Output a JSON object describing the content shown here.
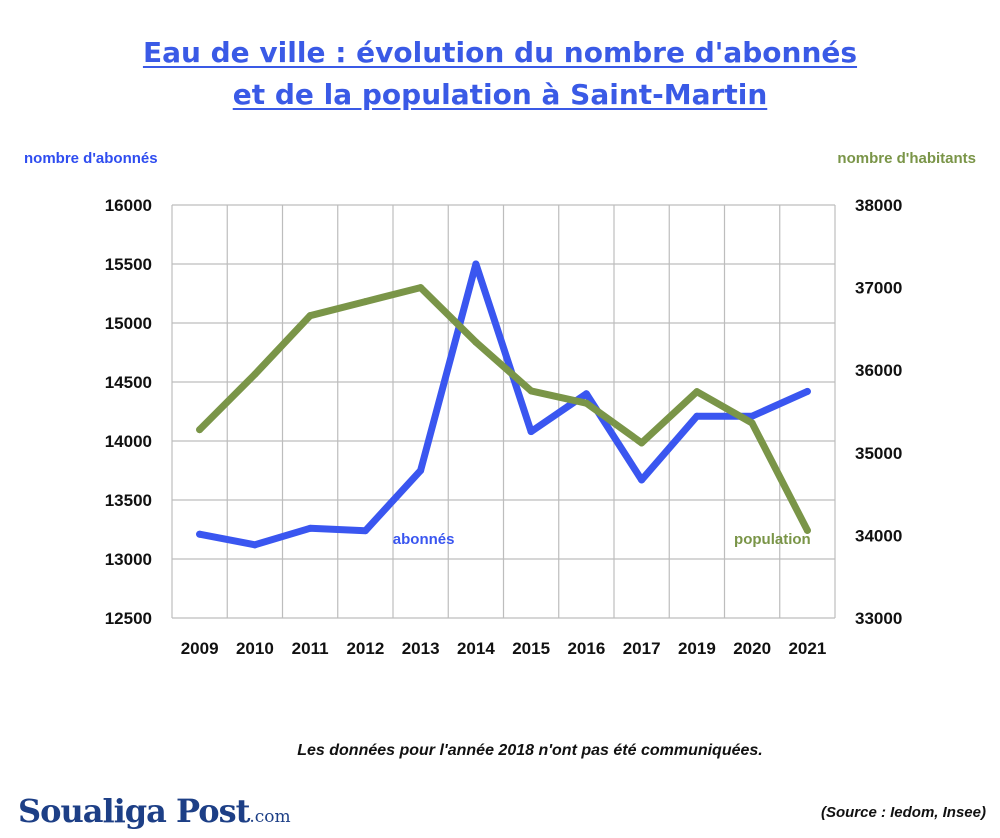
{
  "header": {
    "title_line1": "Eau de ville : évolution du nombre d'abonnés",
    "title_line2": "et de la population à Saint-Martin"
  },
  "axes": {
    "left_title": "nombre d'abonnés",
    "right_title": "nombre d'habitants"
  },
  "footer": {
    "note": "Les données pour l'année 2018 n'ont pas été communiquées.",
    "source": "(Source : Iedom, Insee)",
    "logo_main": "Soualiga Post",
    "logo_suffix": ".com"
  },
  "colors": {
    "abonnes": "#3a56f0",
    "population": "#7a9548",
    "grid": "#bdbdbd",
    "title": "#3a5ae6"
  },
  "chart_data": {
    "type": "line",
    "title": "Eau de ville : évolution du nombre d'abonnés et de la population à Saint-Martin",
    "categories": [
      "2009",
      "2010",
      "2011",
      "2012",
      "2013",
      "2014",
      "2015",
      "2016",
      "2017",
      "2019",
      "2020",
      "2021"
    ],
    "series": [
      {
        "name": "abonnés",
        "axis": "left",
        "values": [
          13210,
          13120,
          13260,
          13240,
          13750,
          15500,
          14080,
          14400,
          13670,
          14210,
          14210,
          14420
        ]
      },
      {
        "name": "population",
        "axis": "right",
        "values": [
          35280,
          35950,
          36660,
          36830,
          37000,
          36340,
          35750,
          35600,
          35120,
          35740,
          35360,
          34060
        ]
      }
    ],
    "ylabel_left": "nombre d'abonnés",
    "ylabel_right": "nombre d'habitants",
    "ylim_left": [
      12500,
      16000
    ],
    "ylim_right": [
      33000,
      38000
    ],
    "yticks_left": [
      "16000",
      "15500",
      "15000",
      "14500",
      "14000",
      "13500",
      "13000",
      "12500"
    ],
    "yticks_right": [
      "38000",
      "37000",
      "36000",
      "35000",
      "34000",
      "33000"
    ],
    "grid": true,
    "legend": "inline labels"
  }
}
